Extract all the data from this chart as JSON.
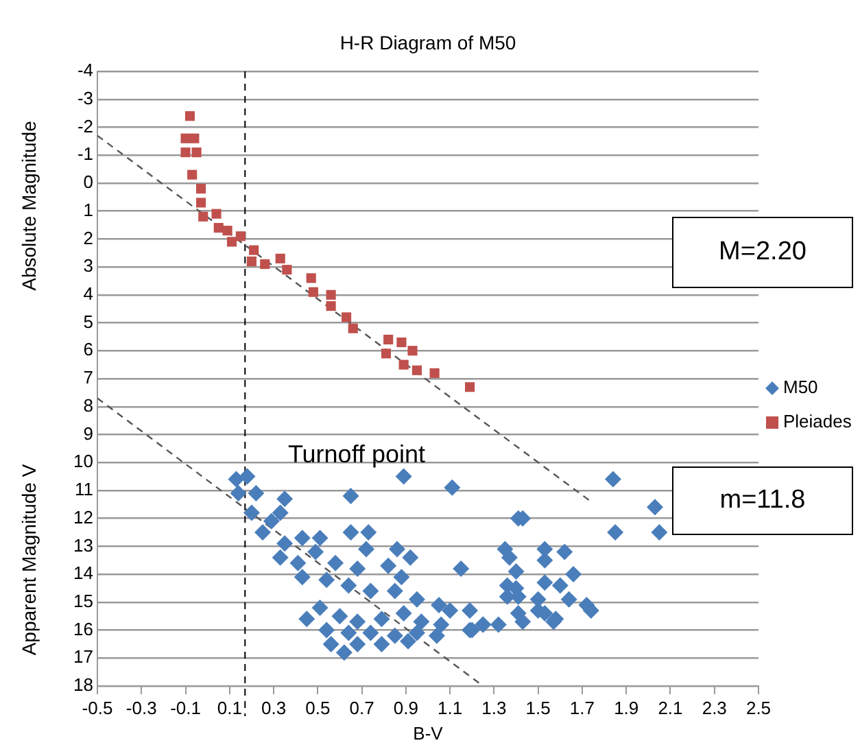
{
  "chart_data": {
    "type": "scatter",
    "title": "H-R Diagram of M50",
    "xlabel": "B-V",
    "ylabel": "Apparent Magnitude V",
    "annotations": [
      "Absolute Magnitude",
      "Turnoff point",
      "M=2.20",
      "m=11.8"
    ],
    "xlim": [
      -0.5,
      2.5
    ],
    "xticks": [
      -0.5,
      -0.3,
      -0.1,
      0.1,
      0.3,
      0.5,
      0.7,
      0.9,
      1.1,
      1.3,
      1.5,
      1.7,
      1.9,
      2.1,
      2.3,
      2.5
    ],
    "ylim": [
      18,
      -4
    ],
    "yticks": [
      -4,
      -3,
      -2,
      -1,
      0,
      1,
      2,
      3,
      4,
      5,
      6,
      7,
      8,
      9,
      10,
      11,
      12,
      13,
      14,
      15,
      16,
      17,
      18
    ],
    "grid": "y",
    "legend": "right",
    "ref_lines": [
      {
        "axis": "x",
        "value": 0.17,
        "color": "#000000",
        "line_style": "dashed"
      }
    ],
    "series": [
      {
        "name": "M50",
        "color": "#4a7ebb",
        "marker": "diamond",
        "x": [
          0.13,
          0.18,
          0.14,
          0.22,
          0.35,
          0.65,
          0.89,
          1.11,
          0.2,
          0.29,
          0.33,
          0.25,
          0.35,
          0.43,
          0.51,
          0.65,
          0.73,
          0.72,
          0.86,
          0.92,
          1.15,
          0.33,
          0.41,
          0.49,
          0.58,
          0.68,
          0.82,
          0.88,
          0.43,
          0.54,
          0.64,
          0.74,
          0.85,
          0.95,
          1.05,
          1.1,
          1.19,
          0.45,
          0.51,
          0.6,
          0.68,
          0.79,
          0.89,
          0.97,
          1.06,
          1.04,
          0.95,
          0.85,
          0.74,
          0.64,
          0.54,
          0.56,
          0.62,
          0.68,
          0.79,
          0.91,
          1.19,
          1.25,
          1.32,
          1.41,
          1.84,
          2.03,
          1.85,
          2.05,
          1.43,
          1.35,
          1.37,
          1.53,
          1.53,
          1.62,
          1.4,
          1.66,
          1.36,
          1.4,
          1.53,
          1.6,
          1.36,
          1.41,
          1.5,
          1.64,
          1.72,
          1.74,
          1.5,
          1.53,
          1.41,
          1.43,
          1.58,
          1.57,
          1.2,
          1.25
        ],
        "values": [
          10.6,
          10.5,
          11.1,
          11.1,
          11.3,
          11.2,
          10.5,
          10.9,
          11.8,
          12.1,
          11.8,
          12.5,
          12.9,
          12.7,
          12.7,
          12.5,
          12.5,
          13.1,
          13.1,
          13.4,
          13.8,
          13.4,
          13.6,
          13.2,
          13.6,
          13.8,
          13.7,
          14.1,
          14.1,
          14.2,
          14.4,
          14.6,
          14.6,
          14.9,
          15.1,
          15.3,
          15.3,
          15.6,
          15.2,
          15.5,
          15.7,
          15.6,
          15.4,
          15.7,
          15.8,
          16.2,
          16.1,
          16.2,
          16.1,
          16.1,
          16,
          16.5,
          16.8,
          16.5,
          16.5,
          16.4,
          16,
          15.8,
          15.8,
          12,
          10.6,
          11.6,
          12.5,
          12.5,
          12,
          13.1,
          13.4,
          13.1,
          13.5,
          13.2,
          13.9,
          14,
          14.4,
          14.5,
          14.3,
          14.4,
          14.8,
          14.8,
          14.9,
          14.9,
          15.1,
          15.3,
          15.3,
          15.4,
          15.4,
          15.7,
          15.6,
          15.7,
          16,
          15.8
        ]
      },
      {
        "name": "Pleiades",
        "color": "#c0504d",
        "marker": "square",
        "x": [
          -0.08,
          -0.1,
          -0.06,
          -0.1,
          -0.05,
          -0.07,
          -0.03,
          -0.03,
          -0.02,
          0.04,
          0.05,
          0.09,
          0.11,
          0.15,
          0.21,
          0.2,
          0.26,
          0.33,
          0.36,
          0.47,
          0.48,
          0.56,
          0.56,
          0.63,
          0.66,
          0.82,
          0.88,
          0.93,
          0.81,
          0.89,
          0.95,
          1.03,
          1.19
        ],
        "values": [
          -2.4,
          -1.6,
          -1.6,
          -1.1,
          -1.1,
          -0.3,
          0.2,
          0.7,
          1.2,
          1.1,
          1.6,
          1.7,
          2.1,
          1.9,
          2.4,
          2.8,
          2.9,
          2.7,
          3.1,
          3.4,
          3.9,
          4,
          4.4,
          4.8,
          5.2,
          5.6,
          5.7,
          6,
          6.1,
          6.5,
          6.7,
          6.8,
          7.3
        ]
      },
      {
        "type": "line",
        "color": "#555555",
        "line_style": "dashed",
        "marker": "none",
        "x": [
          -0.5,
          1.74
        ],
        "values": [
          -1.7,
          11.4
        ]
      },
      {
        "type": "line",
        "color": "#555555",
        "line_style": "dashed",
        "marker": "none",
        "x": [
          -0.5,
          1.25
        ],
        "values": [
          7.7,
          18
        ]
      }
    ]
  }
}
